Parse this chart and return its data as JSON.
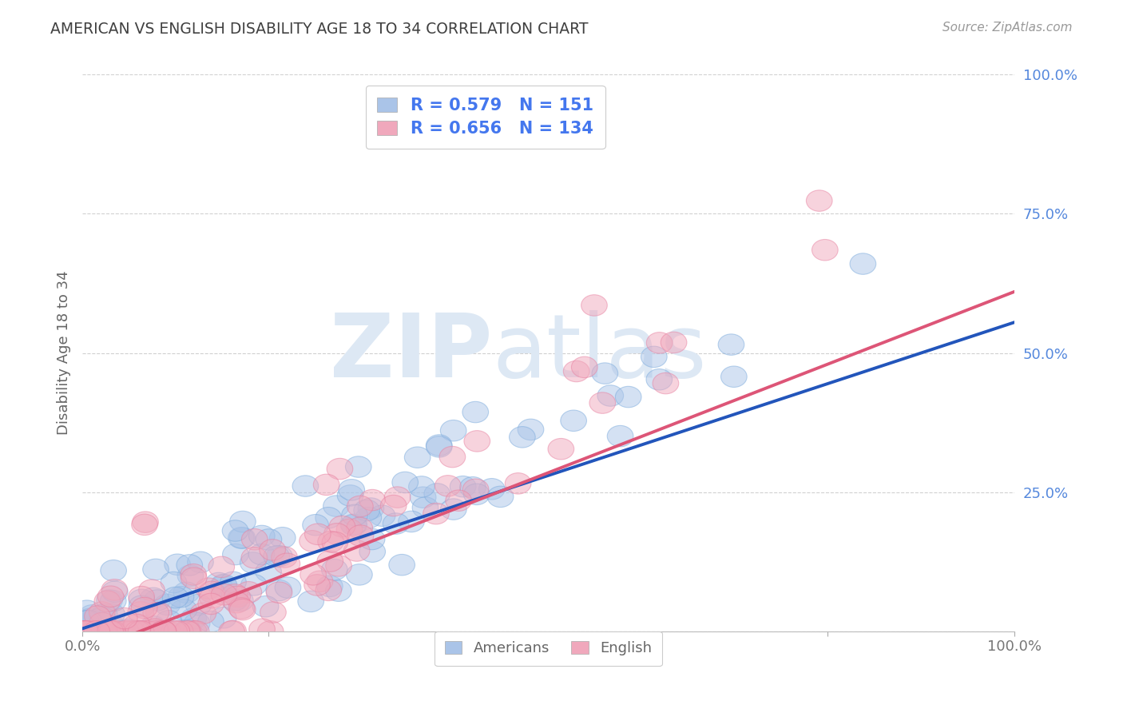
{
  "title": "AMERICAN VS ENGLISH DISABILITY AGE 18 TO 34 CORRELATION CHART",
  "source": "Source: ZipAtlas.com",
  "ylabel": "Disability Age 18 to 34",
  "xlim": [
    0.0,
    1.0
  ],
  "ylim": [
    0.0,
    1.0
  ],
  "watermark_zip": "ZIP",
  "watermark_atlas": "atlas",
  "legend_label1": "Americans",
  "legend_label2": "English",
  "blue_color": "#aac4e8",
  "pink_color": "#f0a8bc",
  "blue_edge_color": "#7aaadc",
  "pink_edge_color": "#e880a0",
  "blue_line_color": "#2255bb",
  "pink_line_color": "#dd5577",
  "title_color": "#404040",
  "tick_color": "#5588dd",
  "source_color": "#999999",
  "r_n_color": "#4477ee",
  "americans_R": 0.579,
  "americans_N": 151,
  "english_R": 0.656,
  "english_N": 134,
  "blue_slope": 0.55,
  "blue_intercept": 0.005,
  "pink_slope": 0.65,
  "pink_intercept": -0.04,
  "background_color": "#ffffff",
  "grid_color": "#cccccc",
  "watermark_color": "#dde8f4"
}
